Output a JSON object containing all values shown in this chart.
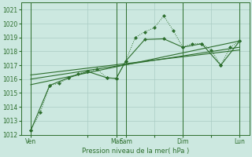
{
  "background_color": "#cce8e0",
  "grid_color": "#aaccc4",
  "line_color": "#2d6e2d",
  "xlabel": "Pression niveau de la mer( hPa )",
  "ylim": [
    1012,
    1021.5
  ],
  "yticks": [
    1012,
    1013,
    1014,
    1015,
    1016,
    1017,
    1018,
    1019,
    1020,
    1021
  ],
  "xlim": [
    0,
    96
  ],
  "day_labels": [
    "Ven",
    "",
    "Mar",
    "Sam",
    "",
    "Dim",
    "",
    "Lun"
  ],
  "day_positions": [
    4,
    28,
    40,
    44,
    56,
    68,
    80,
    92
  ],
  "vline_positions": [
    4,
    40,
    44,
    68,
    92
  ],
  "series": {
    "line1_dotted": {
      "x": [
        4,
        8,
        12,
        16,
        20,
        24,
        28,
        32,
        36,
        40,
        44,
        48,
        52,
        56,
        60,
        64,
        68,
        72,
        76,
        80,
        84,
        88,
        92
      ],
      "y": [
        1012.3,
        1013.6,
        1015.55,
        1015.7,
        1016.1,
        1016.4,
        1016.55,
        1016.7,
        1016.1,
        1016.05,
        1017.3,
        1019.0,
        1019.4,
        1019.7,
        1020.55,
        1019.5,
        1018.3,
        1018.55,
        1018.55,
        1018.1,
        1017.0,
        1018.3,
        1018.75
      ],
      "style": "dotted"
    },
    "line2_solid": {
      "x": [
        4,
        12,
        20,
        28,
        36,
        40,
        44,
        52,
        60,
        68,
        76,
        84,
        92
      ],
      "y": [
        1012.3,
        1015.55,
        1016.1,
        1016.55,
        1016.1,
        1016.05,
        1017.3,
        1018.85,
        1018.9,
        1018.3,
        1018.55,
        1017.0,
        1018.75
      ],
      "style": "solid"
    },
    "trend1": {
      "x": [
        4,
        92
      ],
      "y": [
        1015.6,
        1018.75
      ]
    },
    "trend2": {
      "x": [
        4,
        92
      ],
      "y": [
        1016.0,
        1018.3
      ]
    },
    "trend3": {
      "x": [
        4,
        92
      ],
      "y": [
        1016.3,
        1018.1
      ]
    }
  }
}
